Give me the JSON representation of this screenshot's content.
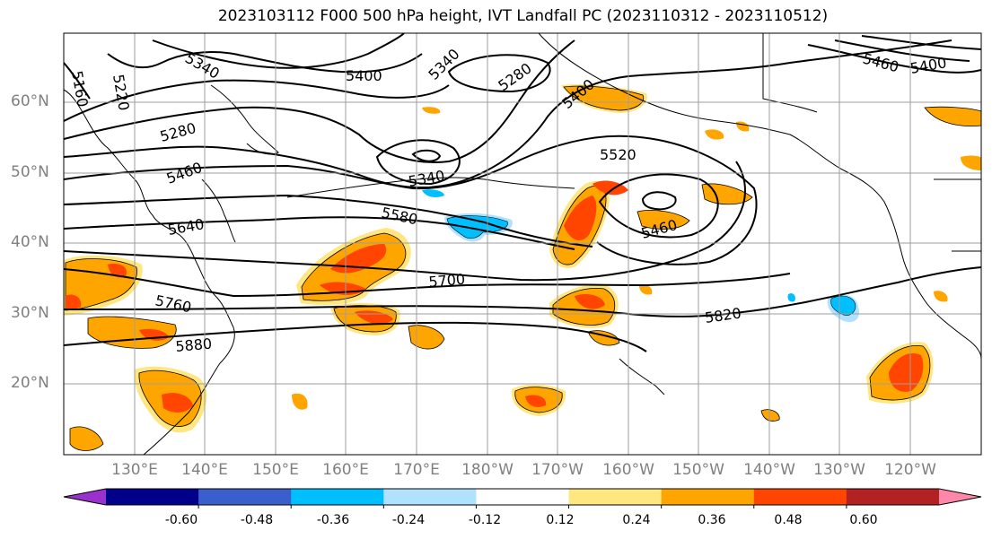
{
  "title": "2023103112 F000 500 hPa height, IVT Landfall PC (2023110312 - 2023110512)",
  "lat_labels": [
    "60°N",
    "50°N",
    "40°N",
    "30°N",
    "20°N"
  ],
  "lon_labels": [
    "130°E",
    "140°E",
    "150°E",
    "160°E",
    "170°E",
    "180°W",
    "170°W",
    "160°W",
    "150°W",
    "140°W",
    "130°W",
    "120°W"
  ],
  "contour_labels": [
    "5160",
    "5220",
    "5340",
    "5400",
    "5340",
    "5280",
    "5400",
    "5400",
    "5460",
    "5280",
    "5520",
    "5460",
    "5340",
    "5580",
    "5640",
    "5460",
    "5700",
    "5760",
    "5820",
    "5880"
  ],
  "colorbar": {
    "tick_labels": [
      "-0.60",
      "-0.48",
      "-0.36",
      "-0.24",
      "-0.12",
      "0.12",
      "0.24",
      "0.36",
      "0.48",
      "0.60"
    ],
    "colors": [
      "#9932cc",
      "#00008b",
      "#3a5fcd",
      "#00bfff",
      "#b0e2ff",
      "#ffffff",
      "#ffe680",
      "#ffa500",
      "#ff4500",
      "#b22222",
      "#ff88aa"
    ]
  },
  "colors": {
    "contour": "#000000",
    "grid": "#9e9e9e",
    "axis_label": "#808080"
  }
}
